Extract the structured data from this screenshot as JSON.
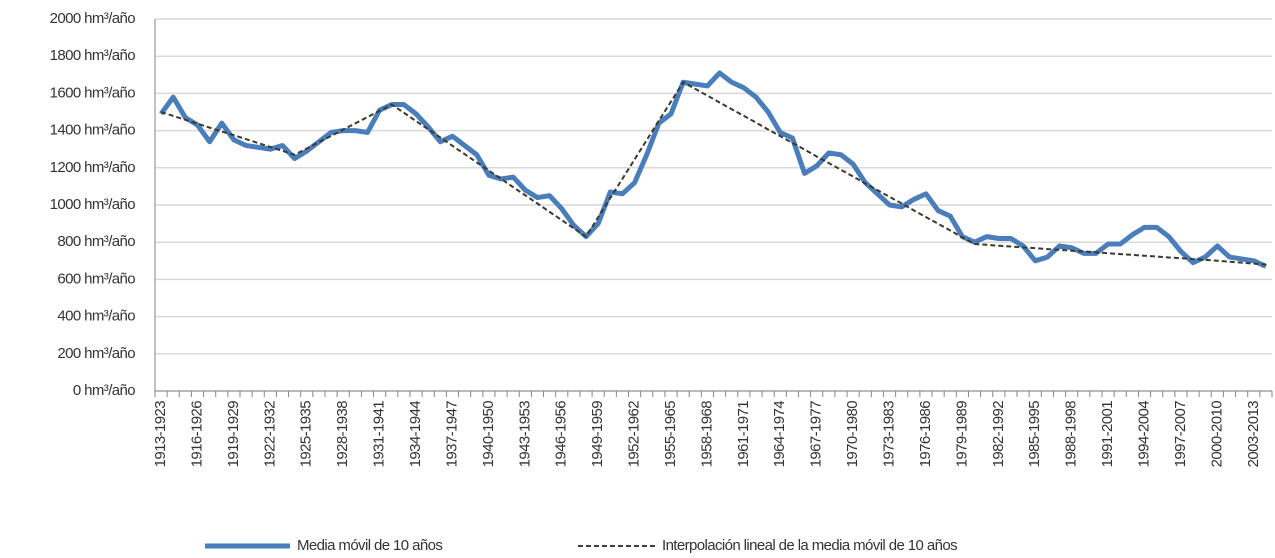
{
  "chart_data": {
    "type": "line",
    "categories": [
      "1913-1923",
      null,
      null,
      "1916-1926",
      null,
      null,
      "1919-1929",
      null,
      null,
      "1922-1932",
      null,
      null,
      "1925-1935",
      null,
      null,
      "1928-1938",
      null,
      null,
      "1931-1941",
      null,
      null,
      "1934-1944",
      null,
      null,
      "1937-1947",
      null,
      null,
      "1940-1950",
      null,
      null,
      "1943-1953",
      null,
      null,
      "1946-1956",
      null,
      null,
      "1949-1959",
      null,
      null,
      "1952-1962",
      null,
      null,
      "1955-1965",
      null,
      null,
      "1958-1968",
      null,
      null,
      "1961-1971",
      null,
      null,
      "1964-1974",
      null,
      null,
      "1967-1977",
      null,
      null,
      "1970-1980",
      null,
      null,
      "1973-1983",
      null,
      null,
      "1976-1986",
      null,
      null,
      "1979-1989",
      null,
      null,
      "1982-1992",
      null,
      null,
      "1985-1995",
      null,
      null,
      "1988-1998",
      null,
      null,
      "1991-2001",
      null,
      null,
      "1994-2004",
      null,
      null,
      "1997-2007",
      null,
      null,
      "2000-2010",
      null,
      null,
      "2003-2013",
      null
    ],
    "series": [
      {
        "name": "Media móvil de 10 años",
        "color": "#4a7ebb",
        "style": "solid",
        "values": [
          1490,
          1580,
          1470,
          1430,
          1340,
          1440,
          1350,
          1320,
          1310,
          1300,
          1320,
          1250,
          1290,
          1340,
          1390,
          1400,
          1400,
          1390,
          1510,
          1540,
          1540,
          1490,
          1420,
          1340,
          1370,
          1320,
          1270,
          1160,
          1140,
          1150,
          1080,
          1040,
          1050,
          980,
          890,
          830,
          900,
          1070,
          1060,
          1120,
          1270,
          1440,
          1490,
          1660,
          1650,
          1640,
          1710,
          1660,
          1630,
          1580,
          1500,
          1390,
          1360,
          1170,
          1210,
          1280,
          1270,
          1220,
          1120,
          1060,
          1000,
          990,
          1030,
          1060,
          970,
          940,
          830,
          800,
          830,
          820,
          820,
          780,
          700,
          720,
          780,
          770,
          740,
          740,
          790,
          790,
          840,
          880,
          880,
          830,
          750,
          690,
          720,
          780,
          720,
          710,
          700,
          670
        ]
      },
      {
        "name": "Interpolación lineal de la media móvil de 10 años",
        "color": "#3b3a2e",
        "style": "dashed",
        "values": [
          1500,
          1479,
          1458,
          1437,
          1416,
          1395,
          1375,
          1354,
          1333,
          1312,
          1291,
          1270,
          1304,
          1338,
          1371,
          1405,
          1439,
          1473,
          1506,
          1540,
          1496,
          1451,
          1407,
          1363,
          1318,
          1274,
          1229,
          1185,
          1141,
          1096,
          1052,
          1008,
          963,
          919,
          874,
          830,
          934,
          1038,
          1141,
          1245,
          1349,
          1453,
          1556,
          1660,
          1624,
          1588,
          1551,
          1515,
          1479,
          1443,
          1406,
          1370,
          1334,
          1298,
          1261,
          1225,
          1189,
          1153,
          1116,
          1080,
          1044,
          1008,
          971,
          935,
          899,
          863,
          826,
          790,
          786,
          781,
          777,
          772,
          768,
          763,
          759,
          754,
          750,
          745,
          741,
          736,
          732,
          727,
          723,
          718,
          714,
          709,
          705,
          700,
          695,
          690,
          685,
          680
        ]
      }
    ],
    "ylim": [
      0,
      2000
    ],
    "yticks": [
      {
        "value": 0,
        "label": "0 hm³/año"
      },
      {
        "value": 200,
        "label": "200 hm³/año"
      },
      {
        "value": 400,
        "label": "400 hm³/año"
      },
      {
        "value": 600,
        "label": "600 hm³/año"
      },
      {
        "value": 800,
        "label": "800 hm³/año"
      },
      {
        "value": 1000,
        "label": "1000 hm³/año"
      },
      {
        "value": 1200,
        "label": "1200 hm³/año"
      },
      {
        "value": 1400,
        "label": "1400 hm³/año"
      },
      {
        "value": 1600,
        "label": "1600 hm³/año"
      },
      {
        "value": 1800,
        "label": "1800 hm³/año"
      },
      {
        "value": 2000,
        "label": "2000 hm³/año"
      }
    ],
    "grid": true
  }
}
